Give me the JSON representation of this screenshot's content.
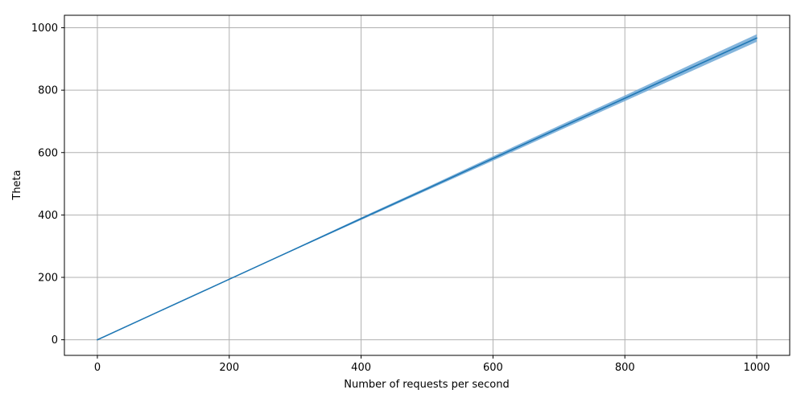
{
  "chart_data": {
    "type": "line",
    "title": "",
    "xlabel": "Number of requests per second",
    "ylabel": "Theta",
    "xlim": [
      -50,
      1050
    ],
    "ylim": [
      -50,
      1040
    ],
    "x_ticks": [
      0,
      200,
      400,
      600,
      800,
      1000
    ],
    "y_ticks": [
      0,
      200,
      400,
      600,
      800,
      1000
    ],
    "x_tick_labels": [
      "0",
      "200",
      "400",
      "600",
      "800",
      "1000"
    ],
    "y_tick_labels": [
      "0",
      "200",
      "400",
      "600",
      "800",
      "1000"
    ],
    "grid": true,
    "legend": "none",
    "series": [
      {
        "x": [
          0,
          100,
          200,
          300,
          400,
          500,
          600,
          700,
          800,
          900,
          1000
        ],
        "y": [
          0,
          97,
          194,
          291,
          388,
          484,
          581,
          678,
          774,
          871,
          967
        ],
        "band_halfwidth": [
          0,
          0,
          0,
          2,
          4,
          5,
          7,
          8,
          9,
          11,
          12
        ],
        "color": "#1f77b4",
        "band_color": "#6fa8d6"
      }
    ]
  }
}
